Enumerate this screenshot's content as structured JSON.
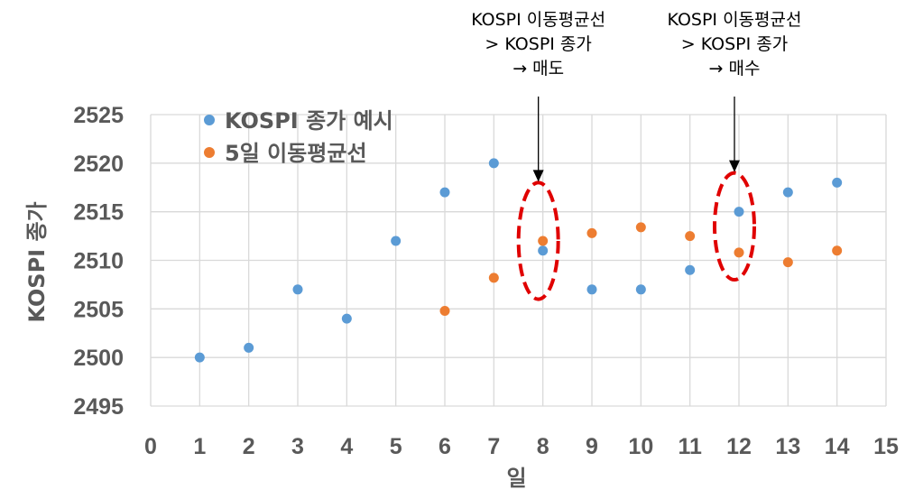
{
  "chart_data": {
    "type": "scatter",
    "xlabel": "일",
    "ylabel": "KOSPI 종가",
    "xlim": [
      0,
      15
    ],
    "ylim": [
      2495,
      2525
    ],
    "x_ticks": [
      "0",
      "1",
      "2",
      "3",
      "4",
      "5",
      "6",
      "7",
      "8",
      "9",
      "10",
      "11",
      "12",
      "13",
      "14",
      "15"
    ],
    "y_ticks": [
      "2495",
      "2500",
      "2505",
      "2510",
      "2515",
      "2520",
      "2525"
    ],
    "grid": "both",
    "legend_position": "top-left",
    "series": [
      {
        "name": "KOSPI 종가 예시",
        "color": "#5B9BD5",
        "x": [
          1,
          2,
          3,
          4,
          5,
          6,
          7,
          8,
          9,
          10,
          11,
          12,
          13,
          14
        ],
        "y": [
          2500,
          2501,
          2507,
          2504,
          2512,
          2517,
          2520,
          2511,
          2507,
          2507,
          2509,
          2515,
          2517,
          2518
        ]
      },
      {
        "name": "5일 이동평균선",
        "color": "#ED7D31",
        "x": [
          6,
          7,
          8,
          9,
          10,
          11,
          12,
          13,
          14
        ],
        "y": [
          2504.8,
          2508.2,
          2512.0,
          2512.8,
          2513.4,
          2512.5,
          2510.8,
          2509.8,
          2511.0
        ]
      }
    ],
    "annotations": [
      {
        "lines": [
          "KOSPI 이동평균선",
          "> KOSPI 종가",
          "→ 매도"
        ],
        "x": 8,
        "y_range": [
          2506,
          2518
        ],
        "color": "#E00000"
      },
      {
        "lines": [
          "KOSPI 이동평균선",
          "> KOSPI 종가",
          "→ 매수"
        ],
        "x": 12,
        "y_range": [
          2508,
          2519
        ],
        "color": "#E00000"
      }
    ]
  }
}
